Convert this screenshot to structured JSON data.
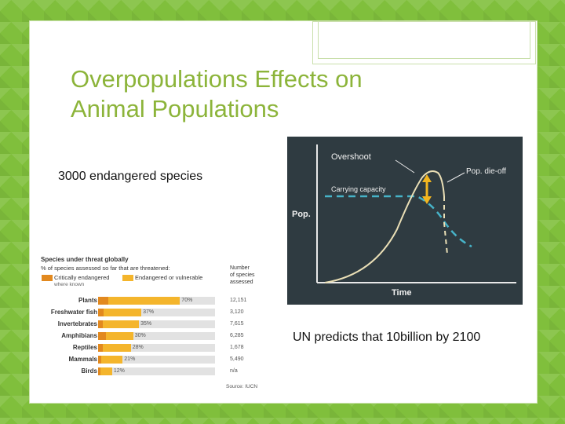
{
  "slide": {
    "title_line1": "Overpopulations Effects on",
    "title_line2": "Animal Populations",
    "text_species": "3000 endangered species",
    "text_un": "UN predicts that 10billion by 2100"
  },
  "graph": {
    "label_overshoot": "Overshoot",
    "label_die_off": "Pop. die-off",
    "label_capacity": "Carrying capacity",
    "label_y": "Pop.",
    "label_x": "Time"
  },
  "threat_chart": {
    "title": "Species under threat globally",
    "subtitle": "% of species assessed so far that are threatened:",
    "legend_ce": "Critically endangered",
    "legend_ce_note": "where known",
    "legend_ev": "Endangered or vulnerable",
    "col_header_1": "Number",
    "col_header_2": "of species",
    "col_header_3": "assessed",
    "source": "Source: IUCN",
    "colors": {
      "critically_endangered": "#e2891f",
      "endangered_vulnerable": "#f4b52c"
    },
    "rows": [
      {
        "label": "Plants",
        "pct": "70%",
        "value": 70,
        "ce": 9,
        "count": "12,151"
      },
      {
        "label": "Freshwater fish",
        "pct": "37%",
        "value": 37,
        "ce": 5,
        "count": "3,120"
      },
      {
        "label": "Invertebrates",
        "pct": "35%",
        "value": 35,
        "ce": 4,
        "count": "7,615"
      },
      {
        "label": "Amphibians",
        "pct": "30%",
        "value": 30,
        "ce": 7,
        "count": "6,285"
      },
      {
        "label": "Reptiles",
        "pct": "28%",
        "value": 28,
        "ce": 4,
        "count": "1,678"
      },
      {
        "label": "Mammals",
        "pct": "21%",
        "value": 21,
        "ce": 3,
        "count": "5,490"
      },
      {
        "label": "Birds",
        "pct": "12%",
        "value": 12,
        "ce": 2,
        "count": "n/a"
      }
    ]
  }
}
